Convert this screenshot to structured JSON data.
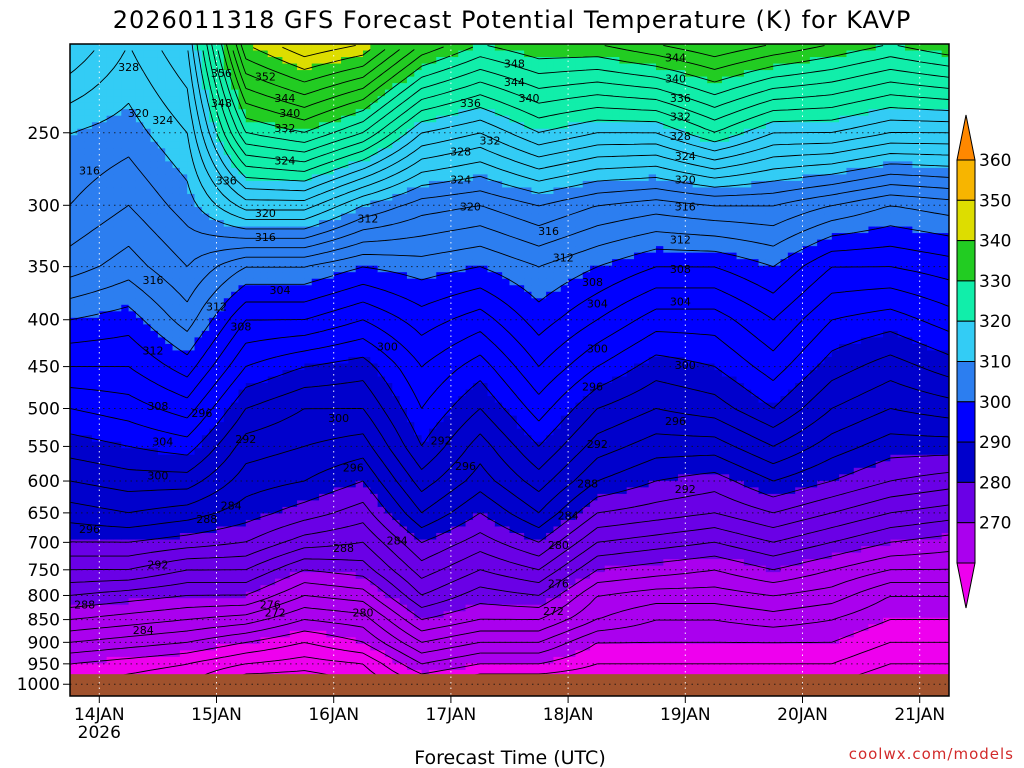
{
  "chart_data": {
    "type": "heatmap",
    "title": "2026011318 GFS Forecast Potential Temperature (K) for KAVP",
    "xlabel": "Forecast Time (UTC)",
    "ylabel": "",
    "credit": "coolwx.com/models",
    "x_ticks": [
      {
        "label": "14JAN",
        "sublabel": "2026",
        "hours": 6
      },
      {
        "label": "15JAN",
        "hours": 30
      },
      {
        "label": "16JAN",
        "hours": 54
      },
      {
        "label": "17JAN",
        "hours": 78
      },
      {
        "label": "18JAN",
        "hours": 102
      },
      {
        "label": "19JAN",
        "hours": 126
      },
      {
        "label": "20JAN",
        "hours": 150
      },
      {
        "label": "21JAN",
        "hours": 174
      }
    ],
    "xlim_hours": [
      0,
      180
    ],
    "y_ticks": [
      "250",
      "300",
      "350",
      "400",
      "450",
      "500",
      "550",
      "600",
      "650",
      "700",
      "750",
      "800",
      "850",
      "900",
      "950",
      "1000"
    ],
    "y_tick_values": [
      250,
      300,
      350,
      400,
      450,
      500,
      550,
      600,
      650,
      700,
      750,
      800,
      850,
      900,
      950,
      1000
    ],
    "ylim_hpa": [
      200,
      1030
    ],
    "y_scale": "log",
    "y_inverted": true,
    "colorbar": {
      "labels": [
        "360",
        "350",
        "340",
        "330",
        "320",
        "310",
        "300",
        "290",
        "280",
        "270"
      ],
      "bounds": [
        265,
        270,
        280,
        290,
        300,
        310,
        320,
        330,
        340,
        350,
        360,
        365
      ],
      "colors": [
        "#ee00ee",
        "#aa00ee",
        "#6a00e6",
        "#0000cc",
        "#0000ff",
        "#2c7ef0",
        "#33ccf5",
        "#11eeaa",
        "#22cc22",
        "#dddd00",
        "#f7b500",
        "#ff8800"
      ],
      "extend": "both"
    },
    "ground_color": "#a0522d",
    "surface_pressure_hpa": 975,
    "levels_hpa": [
      1000,
      950,
      900,
      850,
      800,
      750,
      700,
      650,
      600,
      550,
      500,
      450,
      400,
      350,
      300,
      250,
      200
    ],
    "contour_interval": 2,
    "series": [
      {
        "hours": 0,
        "theta": [
          268,
          270,
          274,
          278,
          282,
          286,
          290,
          293,
          296,
          299,
          302,
          306,
          310,
          315,
          318,
          320,
          326
        ]
      },
      {
        "hours": 12,
        "theta": [
          267,
          269,
          273,
          277,
          281,
          286,
          290,
          294,
          297,
          300,
          303,
          306,
          309,
          313,
          316,
          319,
          322
        ]
      },
      {
        "hours": 24,
        "theta": [
          266,
          268,
          272,
          276,
          280,
          284,
          289,
          293,
          297,
          301,
          305,
          309,
          313,
          316,
          319,
          322,
          326
        ]
      },
      {
        "hours": 36,
        "theta": [
          262,
          266,
          270,
          275,
          280,
          284,
          288,
          291,
          293,
          295,
          298,
          302,
          306,
          312,
          325,
          338,
          350
        ]
      },
      {
        "hours": 48,
        "theta": [
          262,
          265,
          268,
          272,
          276,
          280,
          285,
          289,
          292,
          294,
          296,
          300,
          306,
          312,
          325,
          340,
          354
        ]
      },
      {
        "hours": 60,
        "theta": [
          264,
          266,
          270,
          273,
          277,
          281,
          284,
          287,
          290,
          293,
          296,
          299,
          304,
          310,
          320,
          336,
          352
        ]
      },
      {
        "hours": 72,
        "theta": [
          268,
          272,
          276,
          280,
          284,
          287,
          290,
          294,
          297,
          300,
          302,
          304,
          307,
          311,
          317,
          328,
          344
        ]
      },
      {
        "hours": 84,
        "theta": [
          266,
          270,
          274,
          278,
          281,
          284,
          287,
          290,
          293,
          295,
          298,
          301,
          305,
          310,
          316,
          326,
          340
        ]
      },
      {
        "hours": 96,
        "theta": [
          266,
          270,
          274,
          278,
          282,
          286,
          290,
          294,
          297,
          300,
          303,
          306,
          309,
          312,
          318,
          330,
          342
        ]
      },
      {
        "hours": 108,
        "theta": [
          266,
          268,
          270,
          274,
          276,
          280,
          284,
          288,
          292,
          295,
          298,
          302,
          306,
          310,
          316,
          328,
          342
        ]
      },
      {
        "hours": 120,
        "theta": [
          266,
          268,
          270,
          272,
          275,
          279,
          283,
          287,
          290,
          293,
          296,
          299,
          303,
          308,
          315,
          328,
          344
        ]
      },
      {
        "hours": 132,
        "theta": [
          266,
          268,
          270,
          272,
          275,
          278,
          282,
          286,
          289,
          293,
          297,
          300,
          303,
          308,
          316,
          332,
          346
        ]
      },
      {
        "hours": 144,
        "theta": [
          266,
          268,
          270,
          273,
          276,
          280,
          284,
          288,
          292,
          296,
          300,
          303,
          306,
          310,
          316,
          328,
          344
        ]
      },
      {
        "hours": 156,
        "theta": [
          266,
          268,
          270,
          272,
          275,
          278,
          282,
          286,
          290,
          293,
          296,
          299,
          302,
          306,
          314,
          328,
          342
        ]
      },
      {
        "hours": 168,
        "theta": [
          264,
          266,
          268,
          270,
          272,
          276,
          280,
          284,
          288,
          291,
          294,
          297,
          301,
          306,
          312,
          326,
          340
        ]
      },
      {
        "hours": 180,
        "theta": [
          264,
          266,
          268,
          270,
          272,
          276,
          279,
          283,
          287,
          291,
          295,
          299,
          303,
          307,
          313,
          326,
          342
        ]
      }
    ],
    "contour_labels": [
      {
        "text": "328",
        "hours": 12,
        "hpa": 212
      },
      {
        "text": "320",
        "hours": 14,
        "hpa": 238
      },
      {
        "text": "324",
        "hours": 19,
        "hpa": 242
      },
      {
        "text": "316",
        "hours": 4,
        "hpa": 275
      },
      {
        "text": "316",
        "hours": 17,
        "hpa": 362
      },
      {
        "text": "312",
        "hours": 17,
        "hpa": 432
      },
      {
        "text": "308",
        "hours": 18,
        "hpa": 497
      },
      {
        "text": "304",
        "hours": 19,
        "hpa": 543
      },
      {
        "text": "300",
        "hours": 18,
        "hpa": 592
      },
      {
        "text": "296",
        "hours": 4,
        "hpa": 677
      },
      {
        "text": "292",
        "hours": 18,
        "hpa": 740
      },
      {
        "text": "288",
        "hours": 3,
        "hpa": 818
      },
      {
        "text": "284",
        "hours": 15,
        "hpa": 872
      },
      {
        "text": "356",
        "hours": 31,
        "hpa": 215
      },
      {
        "text": "352",
        "hours": 40,
        "hpa": 217
      },
      {
        "text": "348",
        "hours": 31,
        "hpa": 232
      },
      {
        "text": "344",
        "hours": 44,
        "hpa": 229
      },
      {
        "text": "340",
        "hours": 45,
        "hpa": 238
      },
      {
        "text": "336",
        "hours": 32,
        "hpa": 282
      },
      {
        "text": "332",
        "hours": 44,
        "hpa": 247
      },
      {
        "text": "324",
        "hours": 44,
        "hpa": 268
      },
      {
        "text": "320",
        "hours": 40,
        "hpa": 306
      },
      {
        "text": "316",
        "hours": 40,
        "hpa": 325
      },
      {
        "text": "312",
        "hours": 30,
        "hpa": 387
      },
      {
        "text": "308",
        "hours": 35,
        "hpa": 407
      },
      {
        "text": "304",
        "hours": 43,
        "hpa": 371
      },
      {
        "text": "296",
        "hours": 27,
        "hpa": 506
      },
      {
        "text": "292",
        "hours": 36,
        "hpa": 540
      },
      {
        "text": "288",
        "hours": 28,
        "hpa": 660
      },
      {
        "text": "284",
        "hours": 33,
        "hpa": 638
      },
      {
        "text": "276",
        "hours": 41,
        "hpa": 818
      },
      {
        "text": "272",
        "hours": 42,
        "hpa": 835
      },
      {
        "text": "280",
        "hours": 60,
        "hpa": 835
      },
      {
        "text": "288",
        "hours": 56,
        "hpa": 710
      },
      {
        "text": "296",
        "hours": 58,
        "hpa": 580
      },
      {
        "text": "300",
        "hours": 55,
        "hpa": 512
      },
      {
        "text": "312",
        "hours": 61,
        "hpa": 310
      },
      {
        "text": "300",
        "hours": 65,
        "hpa": 428
      },
      {
        "text": "284",
        "hours": 67,
        "hpa": 697
      },
      {
        "text": "336",
        "hours": 82,
        "hpa": 232
      },
      {
        "text": "328",
        "hours": 80,
        "hpa": 262
      },
      {
        "text": "332",
        "hours": 86,
        "hpa": 255
      },
      {
        "text": "324",
        "hours": 80,
        "hpa": 281
      },
      {
        "text": "320",
        "hours": 82,
        "hpa": 301
      },
      {
        "text": "292",
        "hours": 76,
        "hpa": 542
      },
      {
        "text": "296",
        "hours": 81,
        "hpa": 578
      },
      {
        "text": "348",
        "hours": 91,
        "hpa": 210
      },
      {
        "text": "344",
        "hours": 91,
        "hpa": 220
      },
      {
        "text": "340",
        "hours": 94,
        "hpa": 229
      },
      {
        "text": "316",
        "hours": 98,
        "hpa": 320
      },
      {
        "text": "312",
        "hours": 101,
        "hpa": 342
      },
      {
        "text": "308",
        "hours": 107,
        "hpa": 364
      },
      {
        "text": "304",
        "hours": 108,
        "hpa": 384
      },
      {
        "text": "300",
        "hours": 108,
        "hpa": 430
      },
      {
        "text": "296",
        "hours": 107,
        "hpa": 473
      },
      {
        "text": "292",
        "hours": 108,
        "hpa": 547
      },
      {
        "text": "288",
        "hours": 106,
        "hpa": 604
      },
      {
        "text": "284",
        "hours": 102,
        "hpa": 654
      },
      {
        "text": "280",
        "hours": 100,
        "hpa": 705
      },
      {
        "text": "276",
        "hours": 100,
        "hpa": 776
      },
      {
        "text": "272",
        "hours": 99,
        "hpa": 832
      },
      {
        "text": "344",
        "hours": 124,
        "hpa": 207
      },
      {
        "text": "340",
        "hours": 124,
        "hpa": 218
      },
      {
        "text": "336",
        "hours": 125,
        "hpa": 229
      },
      {
        "text": "332",
        "hours": 125,
        "hpa": 240
      },
      {
        "text": "328",
        "hours": 125,
        "hpa": 252
      },
      {
        "text": "324",
        "hours": 126,
        "hpa": 265
      },
      {
        "text": "320",
        "hours": 126,
        "hpa": 281
      },
      {
        "text": "316",
        "hours": 126,
        "hpa": 301
      },
      {
        "text": "312",
        "hours": 125,
        "hpa": 327
      },
      {
        "text": "308",
        "hours": 125,
        "hpa": 352
      },
      {
        "text": "304",
        "hours": 125,
        "hpa": 382
      },
      {
        "text": "296",
        "hours": 124,
        "hpa": 516
      },
      {
        "text": "300",
        "hours": 126,
        "hpa": 448
      },
      {
        "text": "292",
        "hours": 126,
        "hpa": 612
      }
    ]
  }
}
